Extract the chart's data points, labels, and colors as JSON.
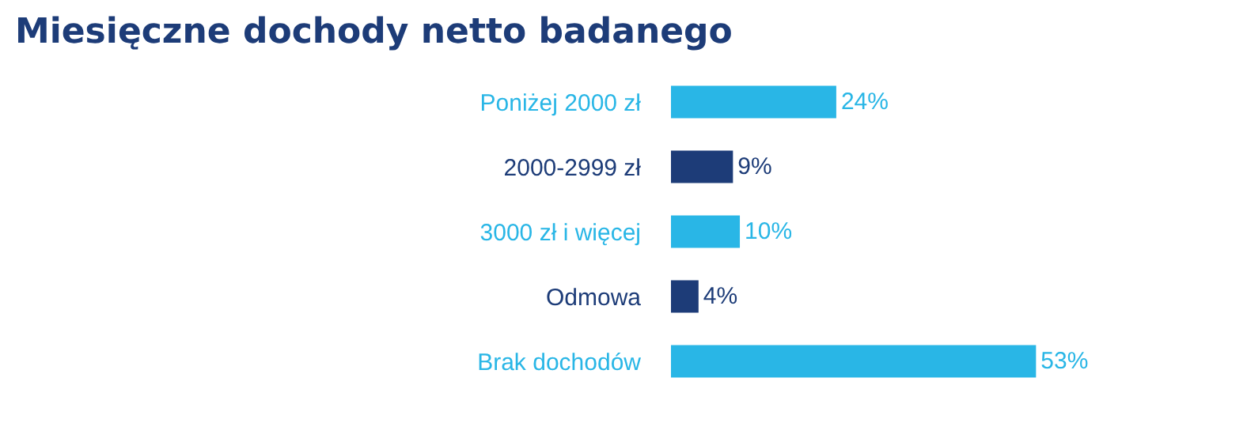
{
  "chart_data": {
    "type": "bar",
    "orientation": "horizontal",
    "title": "Miesięczne dochody netto badanego",
    "categories": [
      "Poniżej 2000 zł",
      "2000-2999 zł",
      "3000 zł i więcej",
      "Odmowa",
      "Brak dochodów"
    ],
    "values": [
      24,
      9,
      10,
      4,
      53
    ],
    "colors": [
      "#29b6e6",
      "#1d3c78",
      "#29b6e6",
      "#1d3c78",
      "#29b6e6"
    ],
    "value_labels": [
      "24%",
      "9%",
      "10%",
      "4%",
      "53%"
    ],
    "tick_labels": "y",
    "grid": false,
    "legend": false
  }
}
